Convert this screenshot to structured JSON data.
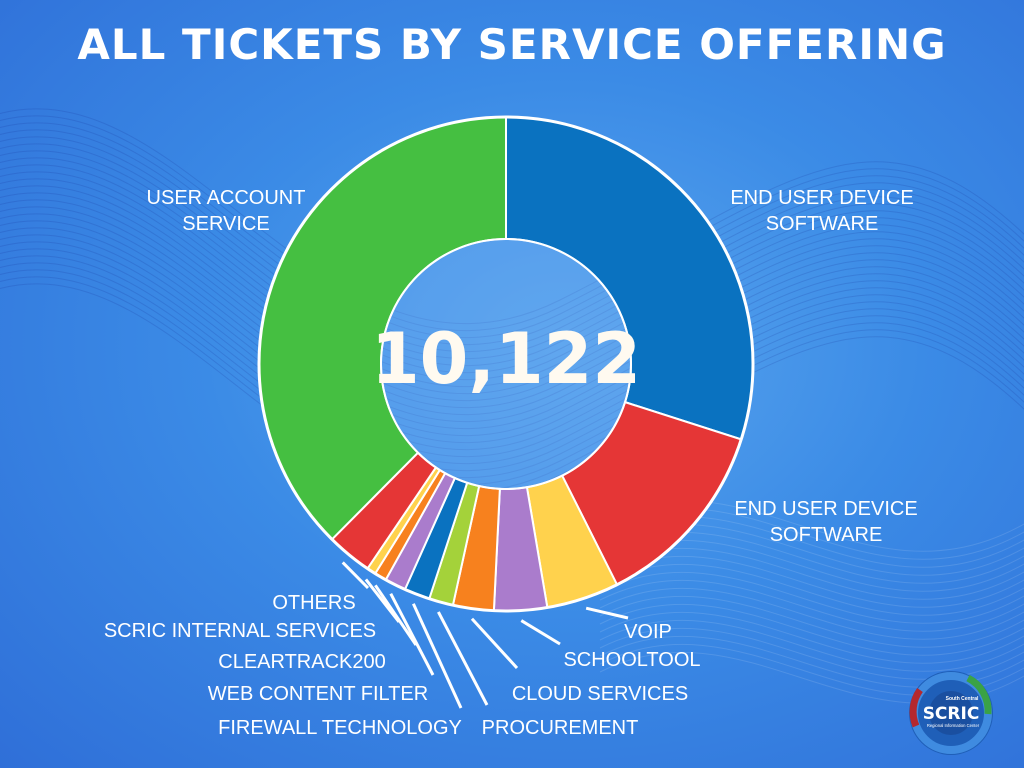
{
  "title": "ALL TICKETS BY SERVICE OFFERING",
  "logo": {
    "name": "SCRIC",
    "subtitle_top": "South Central",
    "subtitle_bottom": "Regional Information Center"
  },
  "colors": {
    "background": "#3b8be6",
    "divider": "#ffffff"
  },
  "chart_data": {
    "type": "donut",
    "total": "10,122",
    "series": [
      {
        "label_lines": [
          "END USER DEVICE",
          "SOFTWARE"
        ],
        "value": 3030,
        "color": "#0a72c0"
      },
      {
        "label_lines": [
          "END USER DEVICE",
          "SOFTWARE"
        ],
        "value": 1280,
        "color": "#e53636"
      },
      {
        "label_lines": [
          "VOIP"
        ],
        "value": 480,
        "color": "#ffd24d"
      },
      {
        "label_lines": [
          "SCHOOLTOOL"
        ],
        "value": 350,
        "color": "#aa7ccc"
      },
      {
        "label_lines": [
          "CLOUD SERVICES"
        ],
        "value": 270,
        "color": "#f7811e"
      },
      {
        "label_lines": [
          "PROCUREMENT"
        ],
        "value": 160,
        "color": "#a4d23a"
      },
      {
        "label_lines": [
          "FIREWALL TECHNOLOGY"
        ],
        "value": 170,
        "color": "#0a72c0"
      },
      {
        "label_lines": [
          "WEB CONTENT FILTER"
        ],
        "value": 140,
        "color": "#aa7ccc"
      },
      {
        "label_lines": [
          "CLEARTRACK200"
        ],
        "value": 80,
        "color": "#f7811e"
      },
      {
        "label_lines": [
          "SCRIC INTERNAL SERVICES"
        ],
        "value": 60,
        "color": "#ffd24d"
      },
      {
        "label_lines": [
          "OTHERS"
        ],
        "value": 300,
        "color": "#e53636"
      },
      {
        "label_lines": [
          "USER ACCOUNT",
          "SERVICE"
        ],
        "value": 3802,
        "color": "#45bf41"
      }
    ]
  }
}
